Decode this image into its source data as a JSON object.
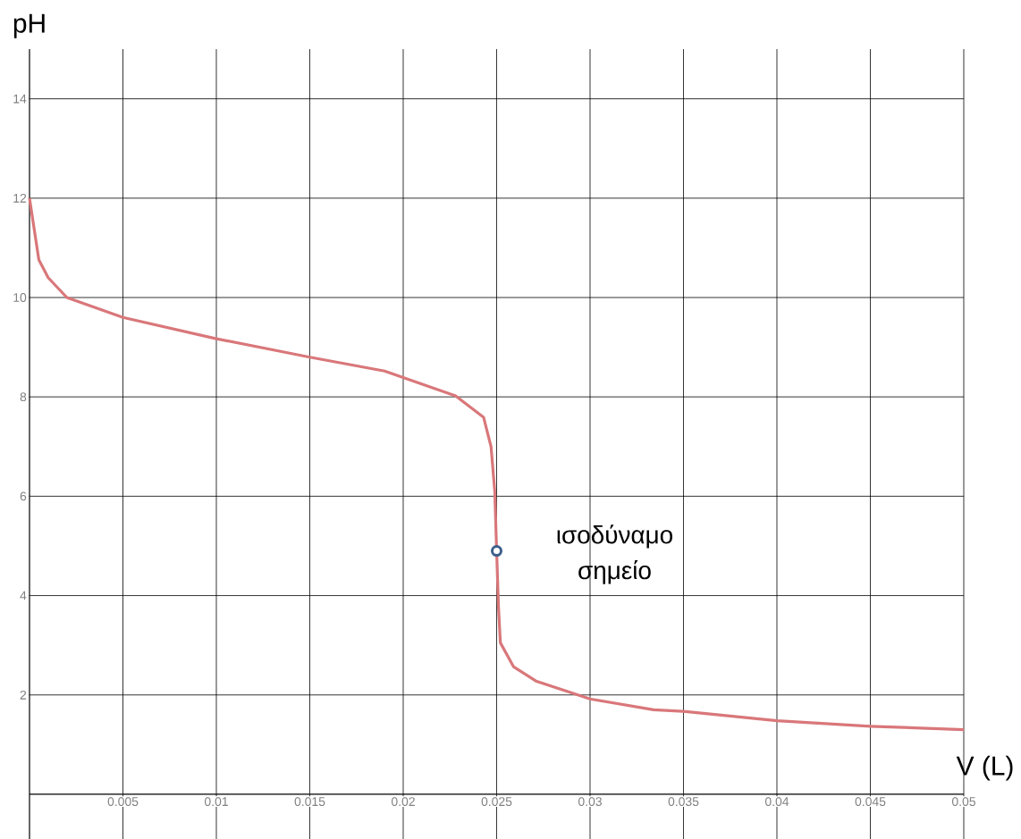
{
  "chart_data": {
    "type": "line",
    "xlabel": "V (L)",
    "ylabel": "pH",
    "xlim": [
      0,
      0.05
    ],
    "ylim": [
      -0.9,
      15
    ],
    "xticks": [
      0.005,
      0.01,
      0.015,
      0.02,
      0.025,
      0.03,
      0.035,
      0.04,
      0.045,
      0.05
    ],
    "yticks": [
      2,
      4,
      6,
      8,
      10,
      12,
      14
    ],
    "grid": true,
    "series": [
      {
        "color": "#d9777a",
        "marker": "none",
        "x": [
          0,
          0.0005,
          0.001,
          0.002,
          0.005,
          0.01,
          0.015,
          0.019,
          0.0228,
          0.0243,
          0.0247,
          0.0249,
          0.025,
          0.0251,
          0.0252,
          0.0259,
          0.0271,
          0.03,
          0.0334,
          0.035,
          0.04,
          0.045,
          0.05
        ],
        "values": [
          12,
          10.76,
          10.4,
          10.0,
          9.6,
          9.17,
          8.8,
          8.52,
          8.02,
          7.59,
          7.0,
          6.1,
          4.9,
          3.77,
          3.05,
          2.57,
          2.28,
          1.92,
          1.7,
          1.67,
          1.48,
          1.37,
          1.3
        ]
      },
      {
        "type": "scatter",
        "color": "#3d5f8c",
        "marker": "circle",
        "x": [
          0.025
        ],
        "values": [
          4.9
        ]
      }
    ],
    "annotations": [
      {
        "text": "ισοδύναμο σημείο",
        "x": 0.025,
        "y": 4.9
      }
    ]
  }
}
